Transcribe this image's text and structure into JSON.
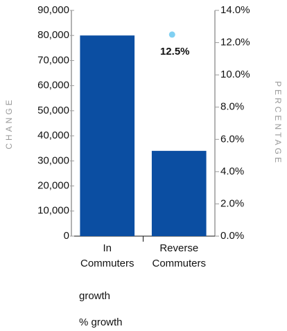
{
  "chart_data": {
    "type": "bar",
    "categories": [
      "In Commuters",
      "Reverse Commuters"
    ],
    "y_label": "CHANGE",
    "y2_label": "PERCENTAGE",
    "ylim": [
      0,
      90000
    ],
    "yticks": [
      0,
      {
        "value": 10000,
        "label": "10,000"
      },
      {
        "value": 20000,
        "label": "20,000"
      },
      {
        "value": 30000,
        "label": "30,000"
      },
      {
        "value": 40000,
        "label": "40,000"
      },
      {
        "value": 50000,
        "label": "50,000"
      },
      {
        "value": 60000,
        "label": "60,000"
      },
      {
        "value": 70000,
        "label": "70,000"
      },
      {
        "value": 80000,
        "label": "80,000"
      },
      {
        "value": 90000,
        "label": "90,000"
      }
    ],
    "y2lim": [
      0,
      14
    ],
    "y2ticks": [
      {
        "value": 0,
        "label": "0.0%"
      },
      {
        "value": 2,
        "label": "2.0%"
      },
      {
        "value": 4,
        "label": "4.0%"
      },
      {
        "value": 6,
        "label": "6.0%"
      },
      {
        "value": 8,
        "label": "8.0%"
      },
      {
        "value": 10,
        "label": "10.0%"
      },
      {
        "value": 12,
        "label": "12.0%"
      },
      {
        "value": 14,
        "label": "14.0%"
      }
    ],
    "series": [
      {
        "name": "growth",
        "type": "bar",
        "color": "#0b4ea2",
        "values": [
          80000,
          34000
        ]
      },
      {
        "name": "% growth",
        "type": "scatter",
        "axis": "y2",
        "color": "#80d0f2",
        "values": [
          null,
          12.5
        ],
        "value_labels": [
          null,
          "12.5%"
        ]
      }
    ]
  }
}
